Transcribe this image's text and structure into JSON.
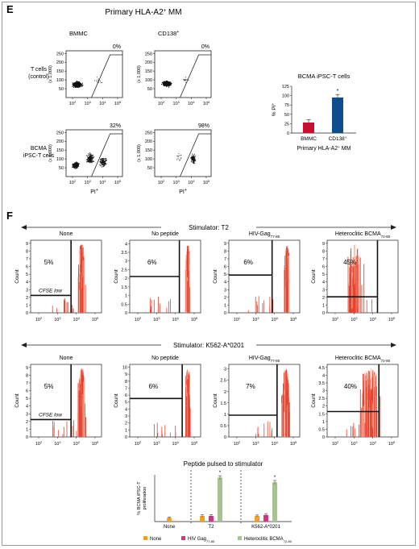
{
  "panel_e": {
    "label": "E",
    "title_text": "Primary HLA-A2",
    "title_sup": "+",
    "title_tail": " MM",
    "col_labels": [
      "BMMC",
      "CD138"
    ],
    "col_label_sups": [
      "",
      "+"
    ],
    "row_labels": [
      [
        "T cells",
        "(control)"
      ],
      [
        "BCMA",
        "iPSC-T cells"
      ]
    ],
    "y_unit": "(x 1,000)",
    "y_ticks": [
      "50",
      "100",
      "150",
      "200",
      "250"
    ],
    "x_ticks": [
      "10",
      "10",
      "10",
      "10"
    ],
    "x_tick_exps": [
      "2",
      "3",
      "4",
      "5"
    ],
    "x_axis_label": "PI",
    "x_axis_sup": "+",
    "gate_percents": [
      "0%",
      "0%",
      "32%",
      "98%"
    ]
  },
  "panel_e_bar": {
    "title": "BCMA iPSC-T cells",
    "ylabel": "% PI",
    "ylabel_sup": "+",
    "xlabel": "Primary HLA-A2",
    "xlabel_sup": "+",
    "xlabel_tail": " MM",
    "significance": "*",
    "cat_sups": [
      "",
      "+"
    ]
  },
  "panel_f": {
    "label": "F",
    "stimulator_rows": [
      "Stimulator: T2",
      "Stimulator: K562-A*0201"
    ],
    "column_titles": [
      "None",
      "No peptide",
      "HIV-Gag",
      "Heteroclitic BCMA"
    ],
    "column_subscripts": [
      "",
      "",
      "77-85",
      "72-80"
    ],
    "ylabel": "Count",
    "cfse_label": "CFSE low",
    "x_ticks": [
      "10",
      "10",
      "10",
      "10"
    ],
    "x_tick_exps": [
      "2",
      "3",
      "4",
      "5"
    ],
    "percents_row1": [
      "5%",
      "6%",
      "6%",
      "45%"
    ],
    "percents_row2": [
      "5%",
      "6%",
      "7%",
      "40%"
    ],
    "yticks_row1": [
      [
        "0",
        "1",
        "2",
        "3",
        "4",
        "5",
        "6",
        "7",
        "8",
        "9"
      ],
      [
        "0",
        "0.5",
        "1",
        "1.5",
        "2",
        "2.5",
        "3",
        "3.5",
        "4"
      ],
      [
        "0",
        "1",
        "2",
        "3",
        "4",
        "5",
        "6",
        "7",
        "8",
        "9"
      ],
      [
        "0",
        "1",
        "2",
        "3",
        "4",
        "5",
        "6",
        "7",
        "8",
        "9"
      ]
    ],
    "yticks_row2": [
      [
        "0",
        "1",
        "2",
        "3",
        "4",
        "5",
        "6",
        "7",
        "8",
        "9"
      ],
      [
        "0",
        "1",
        "2",
        "3",
        "4",
        "5",
        "6",
        "7",
        "8",
        "9",
        "10"
      ],
      [
        "0",
        "0.5",
        "1",
        "1.5",
        "2",
        "2.5",
        "3"
      ],
      [
        "0",
        "0.5",
        "1",
        "1.5",
        "2",
        "2.5",
        "3",
        "3.5",
        "4",
        "4.5"
      ]
    ]
  },
  "panel_f_bar": {
    "title": "Peptide pulsed to stimulator",
    "ylabel_lines": [
      "% BCMA iPSC-T",
      "proliferation"
    ],
    "group_labels": [
      "None",
      "T2",
      "K562-A*0201"
    ],
    "legend": [
      "None",
      "HIV Gag",
      "Heteroclitic BCMA"
    ],
    "legend_subs": [
      "",
      "77-85",
      "72-80"
    ],
    "significance": "*"
  },
  "colors": {
    "histogram": "#e8412c",
    "histogram_light": "#f7b9a8",
    "bar_bmmc": "#c8102e",
    "bar_cd138": "#0d4d8f",
    "series_none": "#f5a020",
    "series_hiv": "#d63384",
    "series_bcma": "#a7c38f"
  },
  "chart_data": [
    {
      "type": "bar",
      "title": "BCMA iPSC-T cells",
      "categories": [
        "BMMC",
        "CD138+"
      ],
      "values": [
        28,
        95
      ],
      "errors": [
        8,
        8
      ],
      "ylabel": "% PI+",
      "xlabel": "Primary HLA-A2+ MM",
      "ylim": [
        0,
        125
      ],
      "yticks": [
        0,
        25,
        50,
        75,
        100,
        125
      ]
    },
    {
      "type": "bar",
      "title": "Peptide pulsed to stimulator",
      "categories": [
        "None",
        "T2",
        "K562-A*0201"
      ],
      "series": [
        {
          "name": "None",
          "values": [
            4,
            6,
            6
          ],
          "errors": [
            1,
            1.5,
            1
          ]
        },
        {
          "name": "HIV Gag77-85",
          "values": [
            null,
            6,
            7
          ],
          "errors": [
            null,
            1.5,
            1.5
          ]
        },
        {
          "name": "Heteroclitic BCMA72-80",
          "values": [
            null,
            47,
            42
          ],
          "errors": [
            null,
            2,
            2
          ]
        }
      ],
      "ylabel": "% BCMA iPSC-T proliferation",
      "ylim": [
        0,
        50
      ]
    }
  ]
}
